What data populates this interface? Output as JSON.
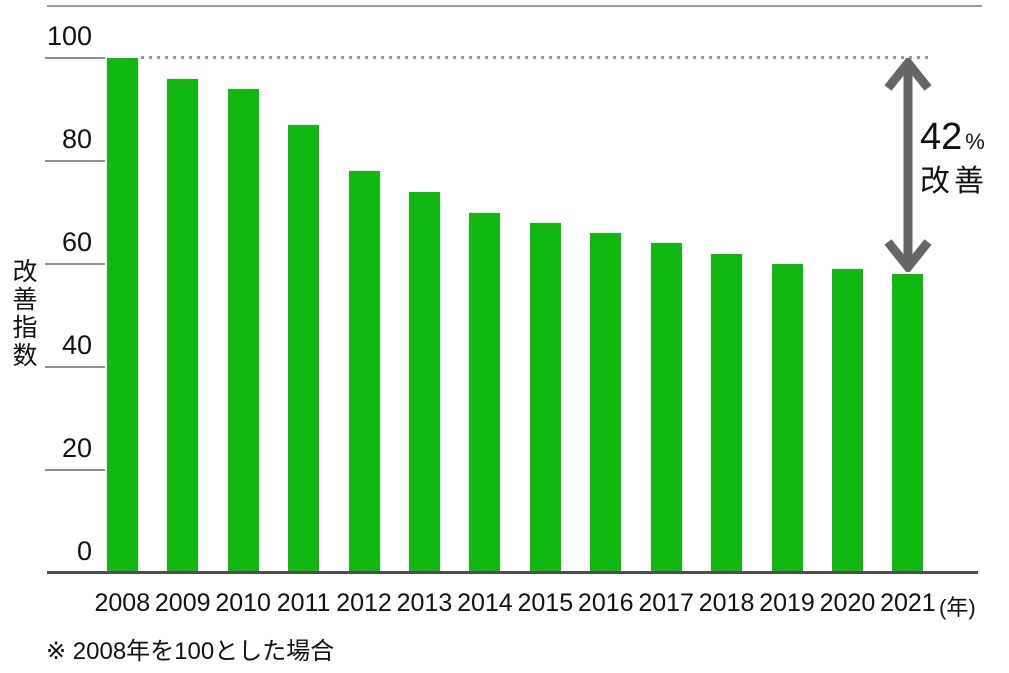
{
  "chart_data": {
    "type": "bar",
    "title": "",
    "categories": [
      "2008",
      "2009",
      "2010",
      "2011",
      "2012",
      "2013",
      "2014",
      "2015",
      "2016",
      "2017",
      "2018",
      "2019",
      "2020",
      "2021"
    ],
    "values": [
      100,
      96,
      94,
      87,
      78,
      74,
      70,
      68,
      66,
      64,
      62,
      60,
      59,
      58
    ],
    "ylabel": "改善指数",
    "xlabel": "",
    "x_unit": "(年)",
    "yticks": [
      0,
      20,
      40,
      60,
      80,
      100
    ],
    "ylim": [
      0,
      100
    ],
    "reference_line_at": 100,
    "reference_line_style": "dotted",
    "grid": "off",
    "legend": "none",
    "bar_color": "#12b812"
  },
  "annotation": {
    "value": "42",
    "unit": "%",
    "label": "改善"
  },
  "footnote": {
    "text": "※ 2008年を100とした場合"
  },
  "colors": {
    "bar": "#12b812",
    "arrow": "#666666",
    "axis_line": "#4d4d4d",
    "tick_line": "#909090",
    "dotted_line": "#999999",
    "top_rule": "#999999",
    "text": "#111111"
  }
}
